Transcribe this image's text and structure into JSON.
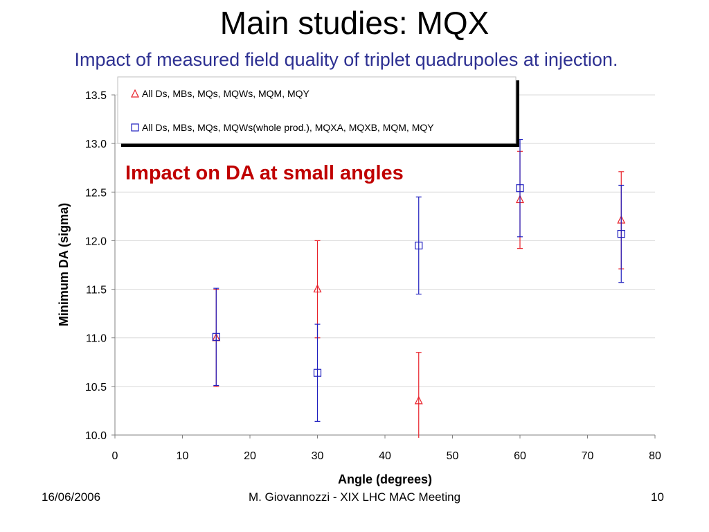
{
  "slide": {
    "title": "Main studies: MQX",
    "subtitle": "Impact of measured field quality of triplet quadrupoles at injection.",
    "footer_date": "16/06/2006",
    "footer_author": "M. Giovannozzi - XIX LHC MAC Meeting",
    "footer_page": "10"
  },
  "chart_data": {
    "type": "scatter",
    "xlabel": "Angle (degrees)",
    "ylabel": "Minimum DA (sigma)",
    "xlim": [
      0,
      80
    ],
    "ylim": [
      10.0,
      13.5
    ],
    "xticks": [
      0,
      10,
      20,
      30,
      40,
      50,
      60,
      70,
      80
    ],
    "yticks": [
      10.0,
      10.5,
      11.0,
      11.5,
      12.0,
      12.5,
      13.0,
      13.5
    ],
    "ytick_labels": [
      "10.0",
      "10.5",
      "11.0",
      "11.5",
      "12.0",
      "12.5",
      "13.0",
      "13.5"
    ],
    "grid": "horizontal",
    "legend_position": "top",
    "annotation": "Impact on DA at small angles",
    "series": [
      {
        "name": "All Ds, MBs, MQs, MQWs, MQM, MQY",
        "marker": "triangle",
        "color": "#e8212a",
        "x": [
          15,
          30,
          45,
          60,
          75
        ],
        "y": [
          11.0,
          11.5,
          10.35,
          12.42,
          12.21
        ],
        "err": [
          0.5,
          0.5,
          0.5,
          0.5,
          0.5
        ]
      },
      {
        "name": "All Ds, MBs, MQs, MQWs(whole prod.), MQXA, MQXB, MQM, MQY",
        "marker": "square",
        "color": "#1f1fbf",
        "x": [
          15,
          30,
          45,
          60,
          75
        ],
        "y": [
          11.01,
          10.64,
          11.95,
          12.54,
          12.07
        ],
        "err": [
          0.5,
          0.5,
          0.5,
          0.5,
          0.5
        ]
      }
    ]
  }
}
